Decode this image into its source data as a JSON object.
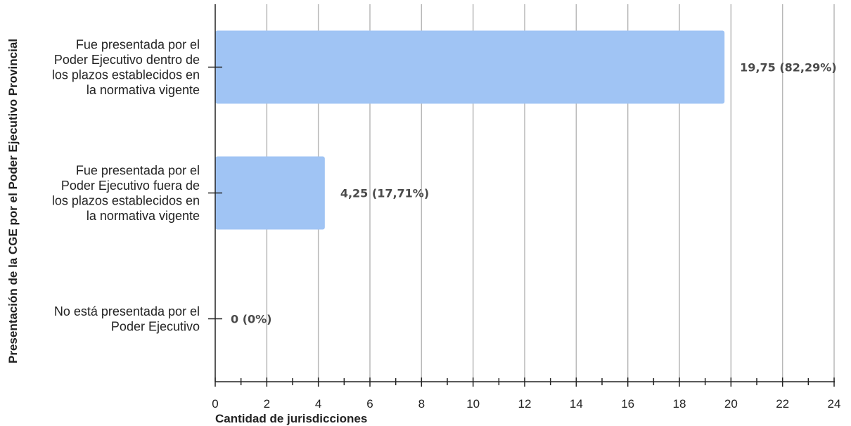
{
  "chart_data": {
    "type": "bar",
    "orientation": "horizontal",
    "categories": [
      [
        "Fue presentada por el",
        "Poder Ejecutivo dentro de",
        "los plazos establecidos en",
        "la normativa vigente"
      ],
      [
        "Fue presentada por el",
        "Poder Ejecutivo fuera de",
        "los plazos establecidos en",
        "la normativa vigente"
      ],
      [
        "No está presentada por el",
        "Poder Ejecutivo"
      ]
    ],
    "values": [
      19.75,
      4.25,
      0
    ],
    "data_labels": [
      "19,75 (82,29%)",
      "4,25 (17,71%)",
      "0 (0%)"
    ],
    "xlabel": "Cantidad de jurisdicciones",
    "ylabel": "Presentación de la CGE por el Poder Ejecutivo Provincial",
    "xlim": [
      0,
      24
    ],
    "xticks": [
      0,
      2,
      4,
      6,
      8,
      10,
      12,
      14,
      16,
      18,
      20,
      22,
      24
    ],
    "xtick_labels": [
      "0",
      "2",
      "4",
      "6",
      "8",
      "10",
      "12",
      "14",
      "16",
      "18",
      "20",
      "22",
      "24"
    ],
    "grid": "vertical",
    "bar_color": "#a0c4f4",
    "grid_color": "#b8b8b8",
    "axis_color": "#222222"
  }
}
